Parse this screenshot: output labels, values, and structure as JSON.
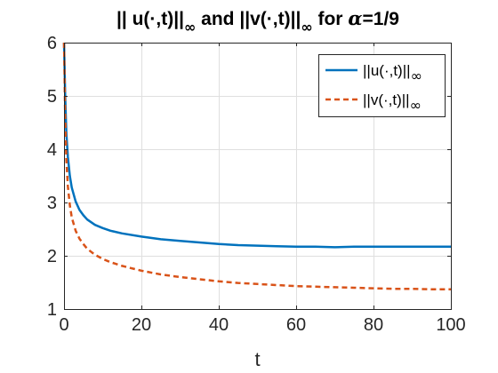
{
  "chart_data": {
    "type": "line",
    "title": {
      "part1": "|| u(·,t)||",
      "sub1": "∞",
      "part2": " and ||v(·,t)||",
      "sub2": "∞",
      "part3": " for ",
      "greek": "α",
      "part4": "=1/9"
    },
    "xlabel": "t",
    "ylabel": "",
    "xlim": [
      0,
      100
    ],
    "ylim": [
      1,
      6
    ],
    "xticks": [
      0,
      20,
      40,
      60,
      80,
      100
    ],
    "yticks": [
      1,
      2,
      3,
      4,
      5,
      6
    ],
    "grid": true,
    "legend_position": "top-right",
    "series": [
      {
        "name": "||u(·,t)||",
        "name_sub": "∞",
        "color": "#0072BD",
        "style": "solid",
        "x": [
          0,
          0.3,
          0.6,
          1,
          1.5,
          2,
          3,
          4,
          5,
          6,
          8,
          10,
          12,
          15,
          20,
          25,
          30,
          35,
          40,
          45,
          50,
          55,
          60,
          65,
          70,
          75,
          80,
          85,
          90,
          95,
          100
        ],
        "y": [
          6.0,
          5.0,
          4.3,
          3.85,
          3.5,
          3.28,
          3.02,
          2.86,
          2.76,
          2.68,
          2.58,
          2.52,
          2.47,
          2.42,
          2.36,
          2.31,
          2.28,
          2.25,
          2.22,
          2.2,
          2.19,
          2.18,
          2.17,
          2.17,
          2.16,
          2.17,
          2.17,
          2.17,
          2.17,
          2.17,
          2.17
        ]
      },
      {
        "name": "||v(·,t)||",
        "name_sub": "∞",
        "color": "#D95319",
        "style": "dashed",
        "x": [
          0,
          0.3,
          0.6,
          1,
          1.5,
          2,
          3,
          4,
          5,
          6,
          8,
          10,
          12,
          15,
          20,
          25,
          30,
          35,
          40,
          45,
          50,
          55,
          60,
          65,
          70,
          75,
          80,
          85,
          90,
          95,
          100
        ],
        "y": [
          6.0,
          4.6,
          3.8,
          3.3,
          2.95,
          2.72,
          2.47,
          2.32,
          2.22,
          2.13,
          2.02,
          1.94,
          1.88,
          1.81,
          1.72,
          1.65,
          1.6,
          1.56,
          1.52,
          1.49,
          1.47,
          1.45,
          1.43,
          1.42,
          1.41,
          1.4,
          1.39,
          1.38,
          1.38,
          1.37,
          1.37
        ]
      }
    ]
  }
}
